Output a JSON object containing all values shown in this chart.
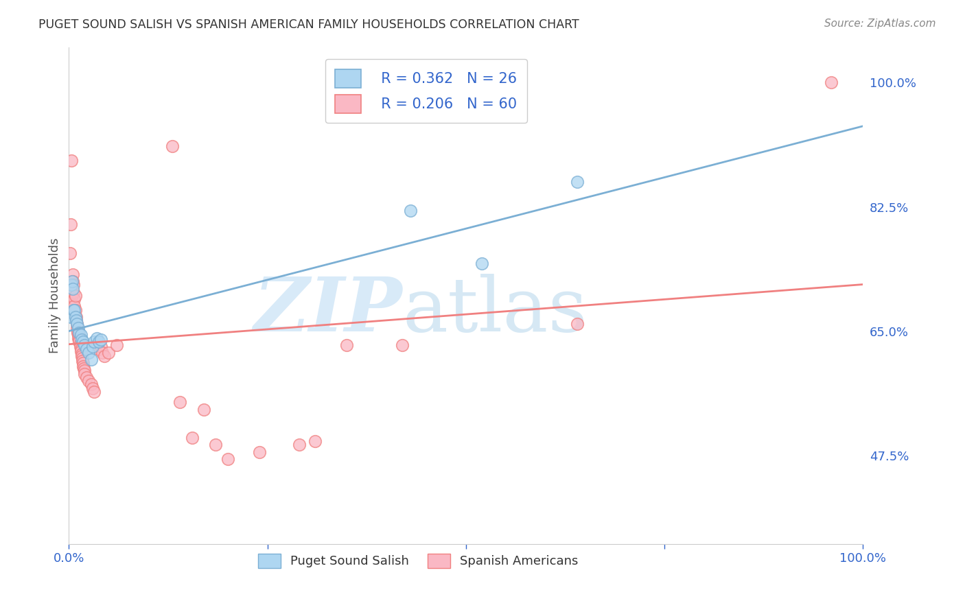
{
  "title": "PUGET SOUND SALISH VS SPANISH AMERICAN FAMILY HOUSEHOLDS CORRELATION CHART",
  "source": "Source: ZipAtlas.com",
  "ylabel": "Family Households",
  "legend_blue_r": "R = 0.362",
  "legend_blue_n": "N = 26",
  "legend_pink_r": "R = 0.206",
  "legend_pink_n": "N = 60",
  "legend_blue_label": "Puget Sound Salish",
  "legend_pink_label": "Spanish Americans",
  "blue_scatter": [
    [
      0.002,
      0.67
    ],
    [
      0.003,
      0.715
    ],
    [
      0.004,
      0.72
    ],
    [
      0.005,
      0.71
    ],
    [
      0.006,
      0.68
    ],
    [
      0.007,
      0.68
    ],
    [
      0.008,
      0.67
    ],
    [
      0.009,
      0.665
    ],
    [
      0.01,
      0.66
    ],
    [
      0.012,
      0.655
    ],
    [
      0.013,
      0.648
    ],
    [
      0.015,
      0.645
    ],
    [
      0.016,
      0.638
    ],
    [
      0.018,
      0.635
    ],
    [
      0.02,
      0.63
    ],
    [
      0.022,
      0.625
    ],
    [
      0.025,
      0.62
    ],
    [
      0.028,
      0.61
    ],
    [
      0.03,
      0.628
    ],
    [
      0.032,
      0.635
    ],
    [
      0.035,
      0.64
    ],
    [
      0.038,
      0.635
    ],
    [
      0.04,
      0.638
    ],
    [
      0.43,
      0.82
    ],
    [
      0.52,
      0.745
    ],
    [
      0.64,
      0.86
    ]
  ],
  "pink_scatter": [
    [
      0.001,
      0.76
    ],
    [
      0.002,
      0.8
    ],
    [
      0.003,
      0.89
    ],
    [
      0.004,
      0.7
    ],
    [
      0.005,
      0.73
    ],
    [
      0.005,
      0.72
    ],
    [
      0.006,
      0.715
    ],
    [
      0.006,
      0.705
    ],
    [
      0.007,
      0.695
    ],
    [
      0.007,
      0.685
    ],
    [
      0.008,
      0.7
    ],
    [
      0.008,
      0.68
    ],
    [
      0.009,
      0.67
    ],
    [
      0.009,
      0.665
    ],
    [
      0.01,
      0.66
    ],
    [
      0.01,
      0.655
    ],
    [
      0.011,
      0.65
    ],
    [
      0.011,
      0.648
    ],
    [
      0.012,
      0.645
    ],
    [
      0.012,
      0.64
    ],
    [
      0.013,
      0.638
    ],
    [
      0.013,
      0.635
    ],
    [
      0.014,
      0.632
    ],
    [
      0.014,
      0.628
    ],
    [
      0.015,
      0.625
    ],
    [
      0.015,
      0.622
    ],
    [
      0.016,
      0.618
    ],
    [
      0.016,
      0.615
    ],
    [
      0.017,
      0.612
    ],
    [
      0.017,
      0.608
    ],
    [
      0.018,
      0.605
    ],
    [
      0.018,
      0.6
    ],
    [
      0.019,
      0.598
    ],
    [
      0.02,
      0.595
    ],
    [
      0.02,
      0.59
    ],
    [
      0.022,
      0.585
    ],
    [
      0.025,
      0.58
    ],
    [
      0.028,
      0.575
    ],
    [
      0.03,
      0.57
    ],
    [
      0.032,
      0.565
    ],
    [
      0.035,
      0.63
    ],
    [
      0.038,
      0.625
    ],
    [
      0.04,
      0.628
    ],
    [
      0.042,
      0.62
    ],
    [
      0.045,
      0.615
    ],
    [
      0.05,
      0.62
    ],
    [
      0.06,
      0.63
    ],
    [
      0.13,
      0.91
    ],
    [
      0.14,
      0.55
    ],
    [
      0.155,
      0.5
    ],
    [
      0.17,
      0.54
    ],
    [
      0.185,
      0.49
    ],
    [
      0.2,
      0.47
    ],
    [
      0.24,
      0.48
    ],
    [
      0.29,
      0.49
    ],
    [
      0.31,
      0.495
    ],
    [
      0.35,
      0.63
    ],
    [
      0.42,
      0.63
    ],
    [
      0.64,
      0.66
    ],
    [
      0.96,
      1.0
    ]
  ],
  "blue_line_color": "#7BAFD4",
  "pink_line_color": "#F08080",
  "blue_scatter_facecolor": "#AED6F1",
  "blue_scatter_edgecolor": "#7BAFD4",
  "pink_scatter_facecolor": "#FAB8C4",
  "pink_scatter_edgecolor": "#F08080",
  "background_color": "#ffffff",
  "grid_color": "#cccccc",
  "title_color": "#333333",
  "source_color": "#888888",
  "axis_label_color": "#3366CC",
  "xlim": [
    0.0,
    1.0
  ],
  "ylim": [
    0.35,
    1.05
  ],
  "yticks": [
    0.475,
    0.65,
    0.825,
    1.0
  ],
  "ytick_labels": [
    "47.5%",
    "65.0%",
    "82.5%",
    "100.0%"
  ]
}
